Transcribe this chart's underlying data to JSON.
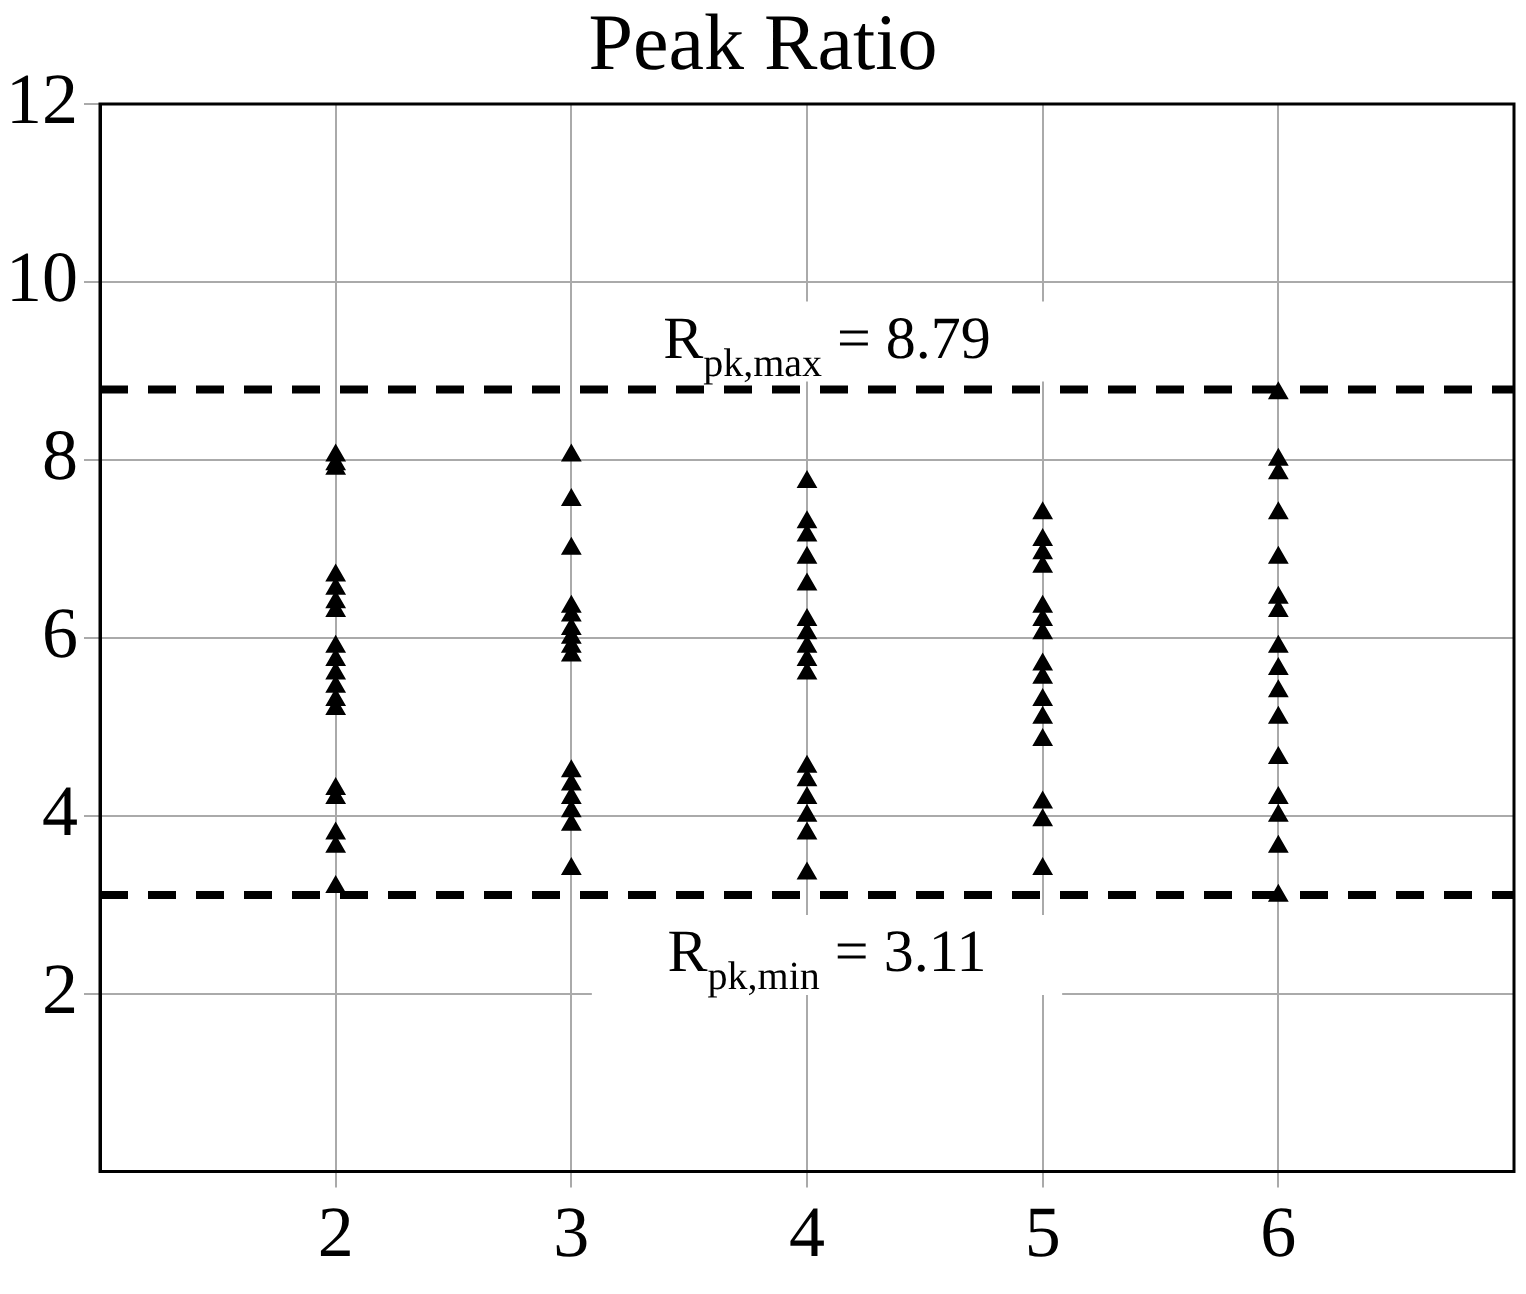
{
  "chart_data": {
    "type": "scatter",
    "title": "Peak Ratio",
    "x": [
      2,
      2,
      2,
      2,
      2,
      2,
      2,
      2,
      2,
      2,
      2,
      2,
      2,
      2,
      2,
      2,
      2,
      2,
      3,
      3,
      3,
      3,
      3,
      3,
      3,
      3,
      3,
      3,
      3,
      3,
      3,
      3,
      3,
      4,
      4,
      4,
      4,
      4,
      4,
      4,
      4,
      4,
      4,
      4,
      4,
      4,
      4,
      4,
      4,
      5,
      5,
      5,
      5,
      5,
      5,
      5,
      5,
      5,
      5,
      5,
      5,
      5,
      5,
      5,
      6,
      6,
      6,
      6,
      6,
      6,
      6,
      6,
      6,
      6,
      6,
      6,
      6,
      6,
      6,
      6
    ],
    "values": [
      8.05,
      7.95,
      7.9,
      6.7,
      6.55,
      6.4,
      6.3,
      5.9,
      5.75,
      5.6,
      5.45,
      5.3,
      5.2,
      4.3,
      4.2,
      3.8,
      3.65,
      3.2,
      8.05,
      7.55,
      7.0,
      6.35,
      6.25,
      6.1,
      6.0,
      5.9,
      5.8,
      4.5,
      4.35,
      4.2,
      4.05,
      3.9,
      3.4,
      7.75,
      7.3,
      7.15,
      6.9,
      6.6,
      6.2,
      6.05,
      5.9,
      5.75,
      5.6,
      4.55,
      4.4,
      4.2,
      4.0,
      3.8,
      3.35,
      7.4,
      7.1,
      6.95,
      6.8,
      6.35,
      6.2,
      6.05,
      5.7,
      5.55,
      5.3,
      5.1,
      4.85,
      4.15,
      3.95,
      3.4,
      8.75,
      8.0,
      7.85,
      7.4,
      6.9,
      6.45,
      6.3,
      5.9,
      5.65,
      5.4,
      5.1,
      4.65,
      4.2,
      4.0,
      3.65,
      3.1
    ],
    "color": "#000000",
    "marker": "triangle",
    "xlim": [
      1,
      7
    ],
    "xticks": [
      2,
      3,
      4,
      5,
      6
    ],
    "ylim": [
      0,
      12
    ],
    "yticks": [
      2,
      4,
      6,
      8,
      10,
      12
    ],
    "grid": true,
    "ref_lines": [
      {
        "axis": "y",
        "value": 8.79,
        "label": "R$_{pk,max}$ = 8.79",
        "color": "#000000",
        "line_style": "dashed"
      },
      {
        "axis": "y",
        "value": 3.11,
        "label": "R$_{pk,min}$ = 3.11",
        "color": "#000000",
        "line_style": "dashed"
      }
    ]
  }
}
